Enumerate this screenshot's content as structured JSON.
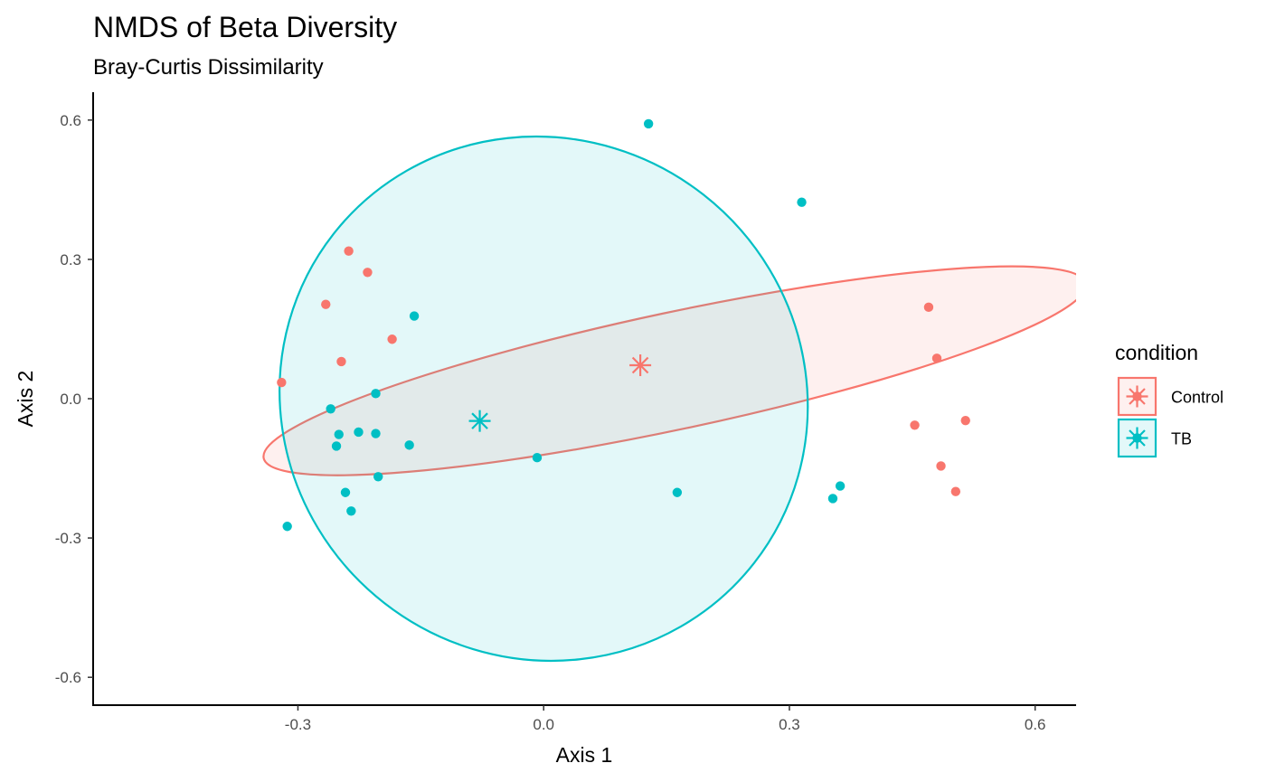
{
  "chart_data": {
    "type": "scatter",
    "title": "NMDS of Beta Diversity",
    "subtitle": "Bray-Curtis Dissimilarity",
    "xlabel": "Axis 1",
    "ylabel": "Axis 2",
    "xlim": [
      -0.55,
      0.65
    ],
    "ylim": [
      -0.66,
      0.66
    ],
    "x_ticks": [
      -0.3,
      0.0,
      0.3,
      0.6
    ],
    "y_ticks": [
      -0.6,
      -0.3,
      0.0,
      0.3,
      0.6
    ],
    "x_tick_labels": [
      "-0.3",
      "0.0",
      "0.3",
      "0.6"
    ],
    "y_tick_labels": [
      "-0.6",
      "-0.3",
      "0.0",
      "0.3",
      "0.6"
    ],
    "grid": false,
    "legend": {
      "title": "condition",
      "position": "right"
    },
    "series": [
      {
        "name": "Control",
        "color": "#F8766D",
        "centroid": [
          0.118,
          0.072
        ],
        "ellipse": {
          "center": [
            0.16,
            0.06
          ],
          "rx": 0.513,
          "ry": 0.126,
          "angle_deg": -12
        },
        "points": [
          [
            -0.238,
            0.318
          ],
          [
            -0.215,
            0.272
          ],
          [
            -0.266,
            0.203
          ],
          [
            -0.185,
            0.128
          ],
          [
            -0.247,
            0.08
          ],
          [
            -0.32,
            0.035
          ],
          [
            0.47,
            0.197
          ],
          [
            0.48,
            0.087
          ],
          [
            0.453,
            -0.057
          ],
          [
            0.515,
            -0.047
          ],
          [
            0.485,
            -0.145
          ],
          [
            0.503,
            -0.2
          ]
        ]
      },
      {
        "name": "TB",
        "color": "#00BFC4",
        "centroid": [
          -0.078,
          -0.048
        ],
        "ellipse": {
          "center": [
            0.0,
            0.0
          ],
          "rx": 0.326,
          "ry": 0.558,
          "angle_deg": 38
        },
        "points": [
          [
            0.128,
            0.592
          ],
          [
            0.315,
            0.423
          ],
          [
            -0.158,
            0.178
          ],
          [
            -0.205,
            0.011
          ],
          [
            -0.26,
            -0.022
          ],
          [
            -0.25,
            -0.077
          ],
          [
            -0.253,
            -0.102
          ],
          [
            -0.226,
            -0.072
          ],
          [
            -0.205,
            -0.075
          ],
          [
            -0.164,
            -0.1
          ],
          [
            -0.202,
            -0.168
          ],
          [
            -0.242,
            -0.202
          ],
          [
            -0.235,
            -0.242
          ],
          [
            -0.313,
            -0.275
          ],
          [
            -0.008,
            -0.127
          ],
          [
            0.163,
            -0.202
          ],
          [
            0.362,
            -0.188
          ],
          [
            0.353,
            -0.215
          ]
        ]
      }
    ]
  }
}
